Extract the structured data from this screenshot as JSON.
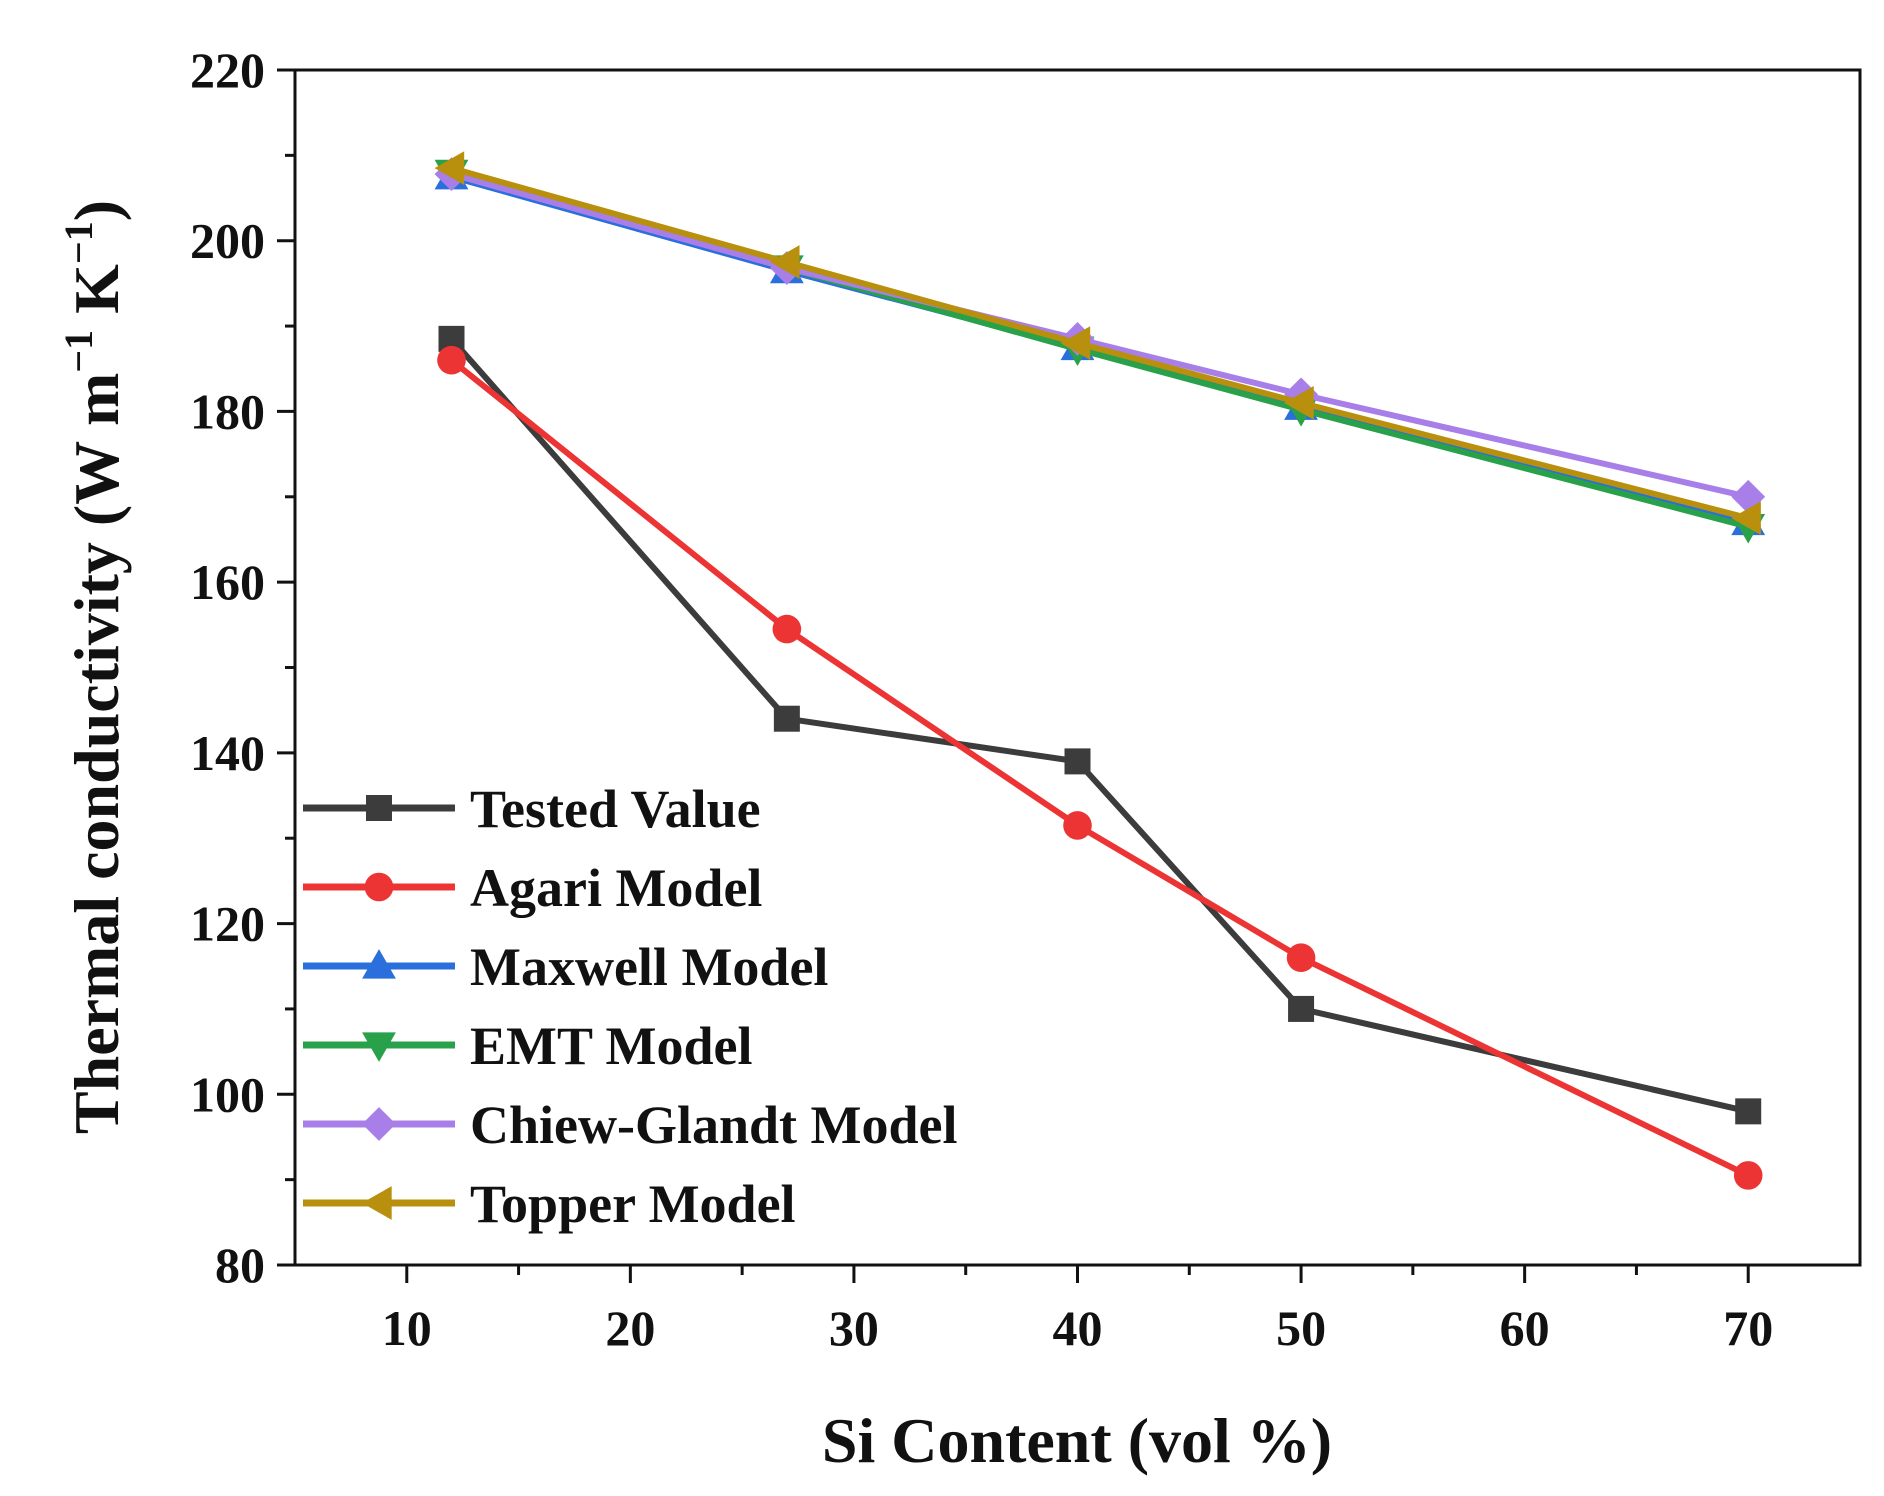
{
  "chart_data": {
    "type": "line",
    "title": "",
    "xlabel": "Si Content (vol %)",
    "ylabel": {
      "main": "Thermal conductivity (W m",
      "mid": " K",
      "close": ")",
      "exp": "−1"
    },
    "xlim": [
      5,
      75
    ],
    "ylim": [
      80,
      220
    ],
    "xticks": [
      10,
      20,
      30,
      40,
      50,
      60,
      70
    ],
    "yticks": [
      80,
      100,
      120,
      140,
      160,
      180,
      200,
      220
    ],
    "x": [
      12,
      27,
      40,
      50,
      70
    ],
    "legend_position": "bottom-left",
    "series": [
      {
        "name": "Tested Value",
        "color": "#3c3c3c",
        "marker": "square",
        "values": [
          188.5,
          144,
          139,
          110,
          98
        ]
      },
      {
        "name": "Agari Model",
        "color": "#ec3434",
        "marker": "circle",
        "values": [
          186,
          154.5,
          131.5,
          116,
          90.5
        ]
      },
      {
        "name": "Maxwell Model",
        "color": "#2a6fdc",
        "marker": "triangle-up",
        "values": [
          207.5,
          196.5,
          187.5,
          180.5,
          167
        ]
      },
      {
        "name": "EMT Model",
        "color": "#29a04a",
        "marker": "triangle-down",
        "values": [
          208,
          196.8,
          187.3,
          180.2,
          166.5
        ]
      },
      {
        "name": "Chiew-Glandt Model",
        "color": "#a87ee8",
        "marker": "diamond",
        "values": [
          207.8,
          196.8,
          188.5,
          182,
          170
        ]
      },
      {
        "name": "Topper Model",
        "color": "#b8900e",
        "marker": "triangle-left",
        "values": [
          208.5,
          197.5,
          188,
          181,
          167.5
        ]
      }
    ]
  }
}
